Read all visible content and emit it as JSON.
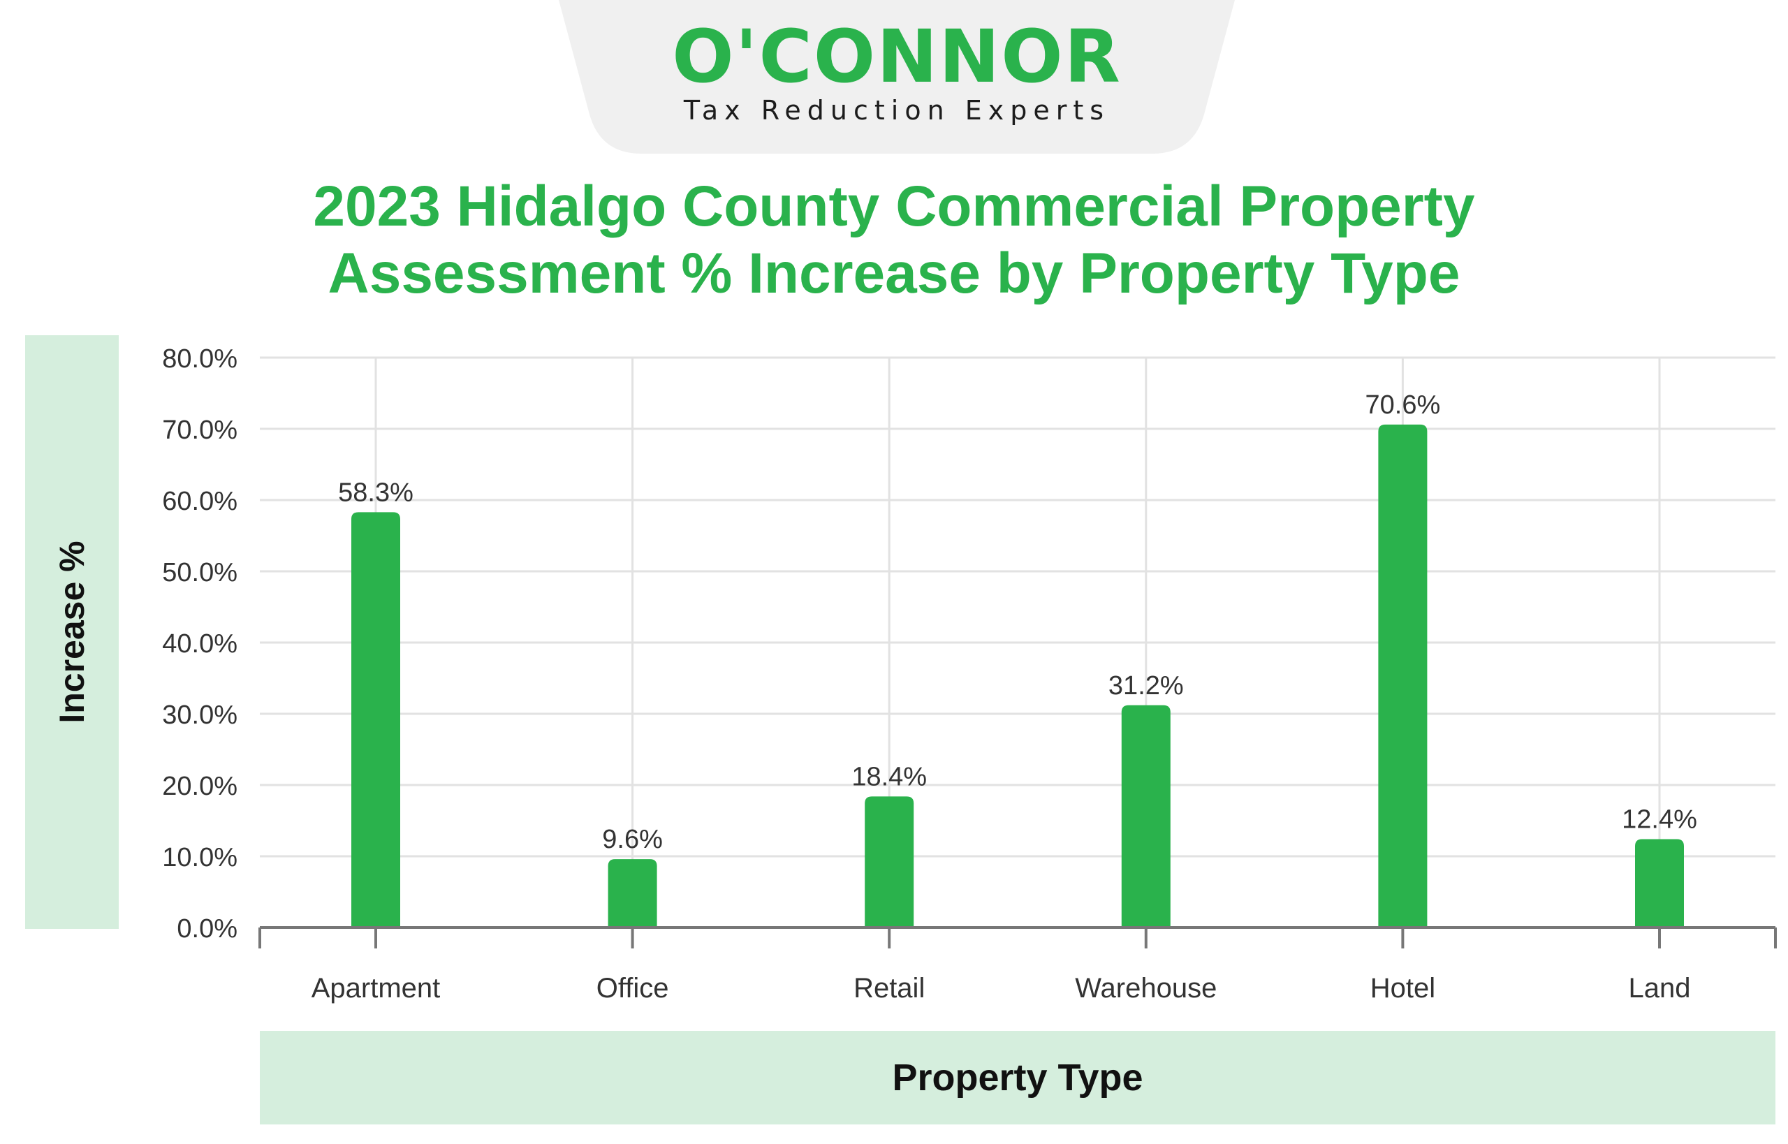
{
  "logo": {
    "wordmark": "O'CONNOR",
    "tagline": "Tax Reduction Experts"
  },
  "colors": {
    "accent": "#2ab24c",
    "panel": "#d5eedd",
    "logo_tab": "#f0f0f0",
    "grid": "#e2e2e2",
    "axis": "#777777",
    "text": "#333333"
  },
  "chart_data": {
    "type": "bar",
    "title": "2023 Hidalgo County Commercial Property Assessment % Increase by Property Type",
    "xlabel": "Property Type",
    "ylabel": "Increase %",
    "categories": [
      "Apartment",
      "Office",
      "Retail",
      "Warehouse",
      "Hotel",
      "Land"
    ],
    "values": [
      58.3,
      9.6,
      18.4,
      31.2,
      70.6,
      12.4
    ],
    "data_labels": [
      "58.3%",
      "9.6%",
      "18.4%",
      "31.2%",
      "70.6%",
      "12.4%"
    ],
    "ylim": [
      0,
      80
    ],
    "yticks": [
      0,
      10,
      20,
      30,
      40,
      50,
      60,
      70,
      80
    ],
    "ytick_labels": [
      "0.0%",
      "10.0%",
      "20.0%",
      "30.0%",
      "40.0%",
      "50.0%",
      "60.0%",
      "70.0%",
      "80.0%"
    ],
    "grid": true,
    "legend": "none"
  }
}
